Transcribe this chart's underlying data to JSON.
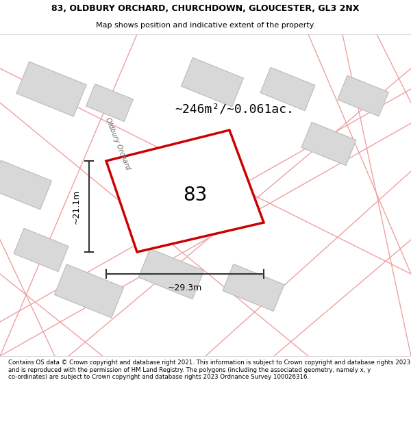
{
  "title_line1": "83, OLDBURY ORCHARD, CHURCHDOWN, GLOUCESTER, GL3 2NX",
  "title_line2": "Map shows position and indicative extent of the property.",
  "footer_text": "Contains OS data © Crown copyright and database right 2021. This information is subject to Crown copyright and database rights 2023 and is reproduced with the permission of HM Land Registry. The polygons (including the associated geometry, namely x, y co-ordinates) are subject to Crown copyright and database rights 2023 Ordnance Survey 100026316.",
  "area_label": "~246m²/~0.061ac.",
  "width_label": "~29.3m",
  "height_label": "~21.1m",
  "property_number": "83",
  "street_label": "Oldbury Orchard",
  "map_bg": "#f8f8f8",
  "header_bg": "#ffffff",
  "footer_bg": "#ffffff",
  "road_color": "#e8e8e8",
  "road_outline": "#cccccc",
  "building_fill": "#d8d8d8",
  "building_outline": "#bbbbbb",
  "property_outline": "#cc0000",
  "property_fill": "#ffffff",
  "road_line_color": "#f0a0a0",
  "dim_line_color": "#333333"
}
